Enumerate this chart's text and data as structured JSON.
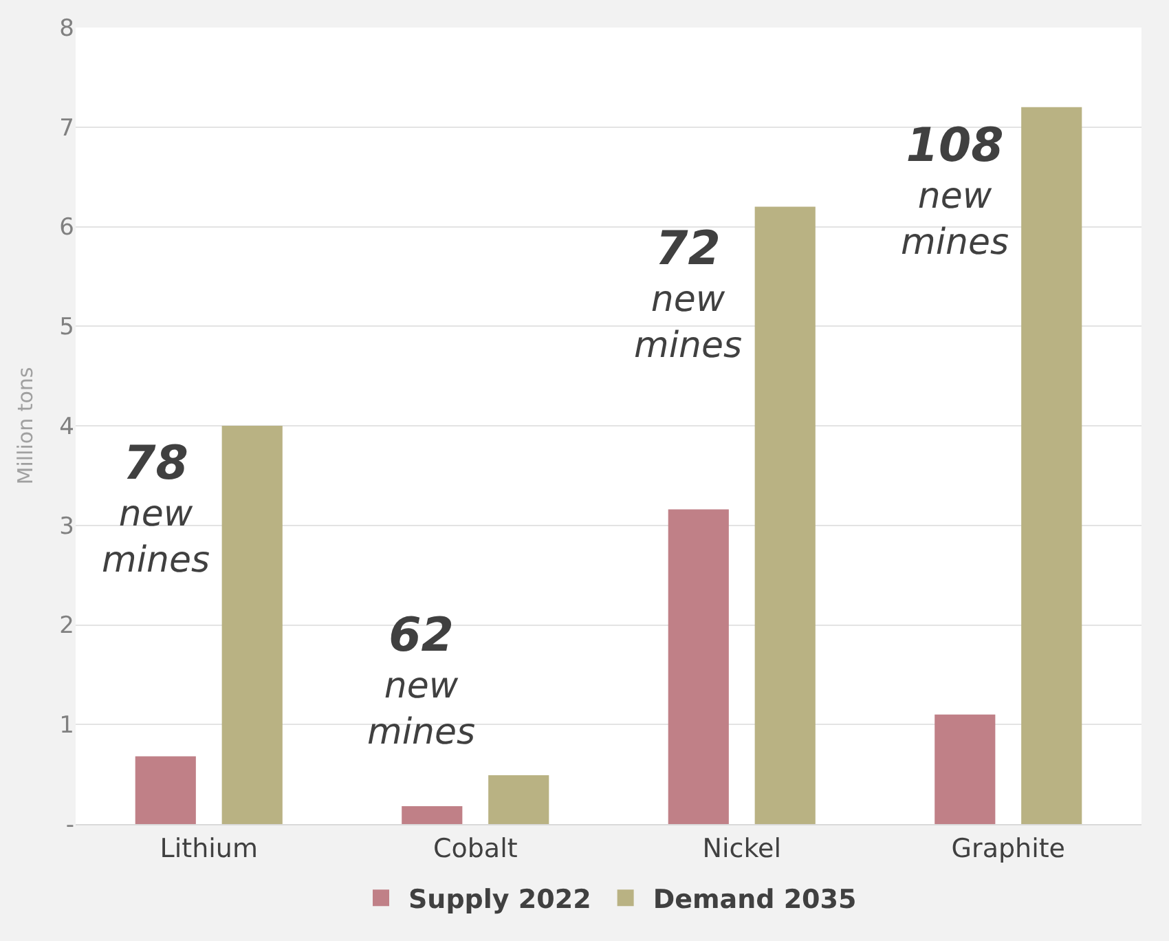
{
  "chart_data": {
    "type": "bar",
    "ylabel": "Million tons",
    "categories": [
      "Lithium",
      "Cobalt",
      "Nickel",
      "Graphite"
    ],
    "series": [
      {
        "name": "Supply 2022",
        "color": "#c08087",
        "values": [
          0.68,
          0.18,
          3.16,
          1.1
        ]
      },
      {
        "name": "Demand 2035",
        "color": "#b9b283",
        "values": [
          4.0,
          0.49,
          6.2,
          7.2
        ]
      }
    ],
    "ylim": [
      0,
      8
    ],
    "yticks": [
      {
        "value": 0,
        "label": "-"
      },
      1,
      2,
      3,
      4,
      5,
      6,
      7,
      8
    ],
    "grid": "y",
    "legend": "bottom",
    "annotations": [
      "78\nnew\nmines",
      "62\nnew\nmines",
      "72\nnew\nmines",
      "108\nnew\nmines"
    ]
  }
}
